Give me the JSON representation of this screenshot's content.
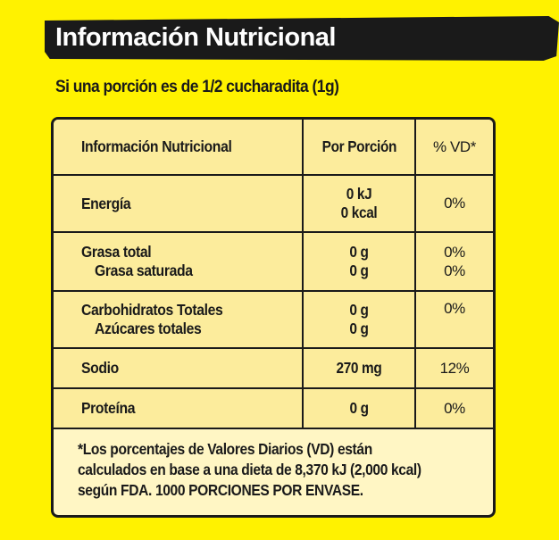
{
  "header": {
    "title": "Información Nutricional",
    "serving": "Si una porción es de 1/2 cucharadita (1g)"
  },
  "table": {
    "col_headers": {
      "nutrient": "Información Nutricional",
      "per_serving": "Por Porción",
      "dv": "% VD*"
    },
    "energia": {
      "label": "Energía",
      "kj": "0 kJ",
      "kcal": "0 kcal",
      "dv": "0%"
    },
    "grasa": {
      "label": "Grasa total",
      "value": "0 g",
      "dv": "0%",
      "sub_label": "Grasa saturada",
      "sub_value": "0 g",
      "sub_dv": "0%"
    },
    "carbohidratos": {
      "label": "Carbohidratos Totales",
      "value": "0 g",
      "dv": "0%",
      "sub_label": "Azúcares totales",
      "sub_value": "0 g"
    },
    "sodio": {
      "label": "Sodio",
      "value": "270 mg",
      "dv": "12%"
    },
    "proteina": {
      "label": "Proteína",
      "value": "0 g",
      "dv": "0%"
    }
  },
  "footnote": {
    "line1": "*Los porcentajes de Valores Diarios  (VD) están",
    "line2": "calculados en base a una dieta de 8,370 kJ (2,000 kcal)",
    "line3": "según FDA. 1000 PORCIONES POR ENVASE."
  }
}
